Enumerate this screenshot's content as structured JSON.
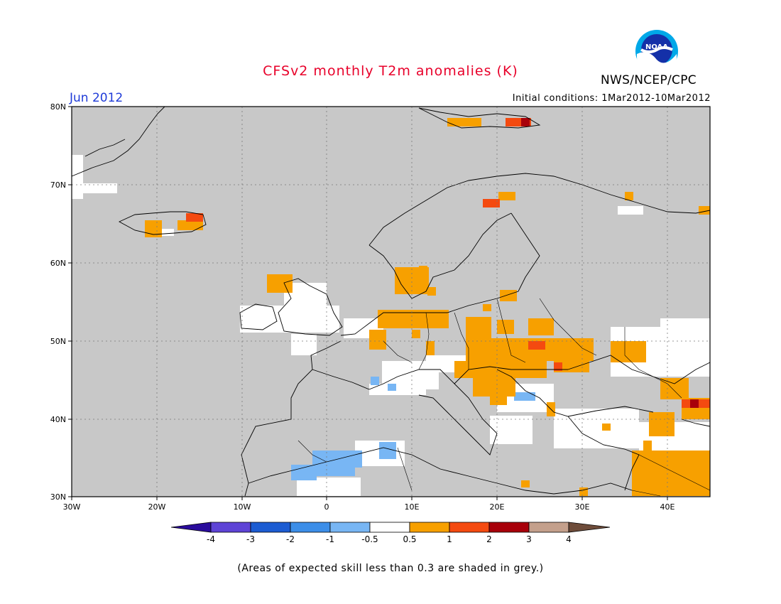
{
  "header": {
    "title": "CFSv2 monthly T2m anomalies (K)",
    "month": "Jun 2012",
    "initial_conditions": "Initial conditions: 1Mar2012-10Mar2012",
    "agency": "NWS/NCEP/CPC",
    "logo_text": "NOAA"
  },
  "map": {
    "lat_range": [
      30,
      80
    ],
    "lon_range": [
      -30,
      45
    ],
    "lat_labels": [
      "80N",
      "70N",
      "60N",
      "50N",
      "40N",
      "30N"
    ],
    "lon_labels": [
      "30W",
      "20W",
      "10W",
      "0",
      "10E",
      "20E",
      "30E",
      "40E"
    ],
    "colors": {
      "grey": "#c8c8c8",
      "white": "#ffffff",
      "orange": "#f7a000",
      "red_orange": "#f44a10",
      "dark_red": "#a8000a",
      "light_blue": "#78b6f4",
      "coast": "#000000"
    }
  },
  "colorbar": {
    "labels": [
      "-4",
      "-3",
      "-2",
      "-1",
      "-0.5",
      "0.5",
      "1",
      "2",
      "3",
      "4"
    ],
    "colors": [
      "#2a0c9c",
      "#5e44d6",
      "#1c5cd2",
      "#3c8ee8",
      "#78b6f4",
      "#ffffff",
      "#f7a000",
      "#f44a10",
      "#a8000a",
      "#c4a08c",
      "#6e4c3a"
    ]
  },
  "footnote": "(Areas of expected skill less than 0.3 are shaded in grey.)"
}
